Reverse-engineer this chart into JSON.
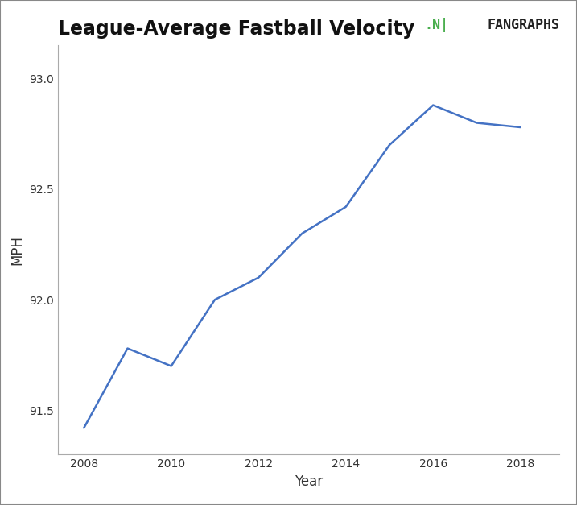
{
  "title": "League-Average Fastball Velocity",
  "xlabel": "Year",
  "ylabel": "MPH",
  "line_color": "#4472C4",
  "line_width": 1.8,
  "background_color": "#ffffff",
  "years": [
    2008,
    2009,
    2010,
    2011,
    2012,
    2013,
    2014,
    2015,
    2016,
    2017,
    2018
  ],
  "mph": [
    91.42,
    91.78,
    91.7,
    92.0,
    92.1,
    92.3,
    92.42,
    92.7,
    92.88,
    92.8,
    92.78
  ],
  "ylim_min": 91.3,
  "ylim_max": 93.15,
  "xlim_min": 2007.4,
  "xlim_max": 2018.9,
  "yticks": [
    91.5,
    92.0,
    92.5,
    93.0
  ],
  "xticks": [
    2008,
    2010,
    2012,
    2014,
    2016,
    2018
  ],
  "title_fontsize": 17,
  "axis_label_fontsize": 12,
  "tick_fontsize": 10,
  "border_color": "#aaaaaa",
  "fg_icon_color": "#4CAF50",
  "fg_text_color": "#222222",
  "fg_icon_text": ".N|",
  "fg_brand_text": "FANGRAPHS"
}
